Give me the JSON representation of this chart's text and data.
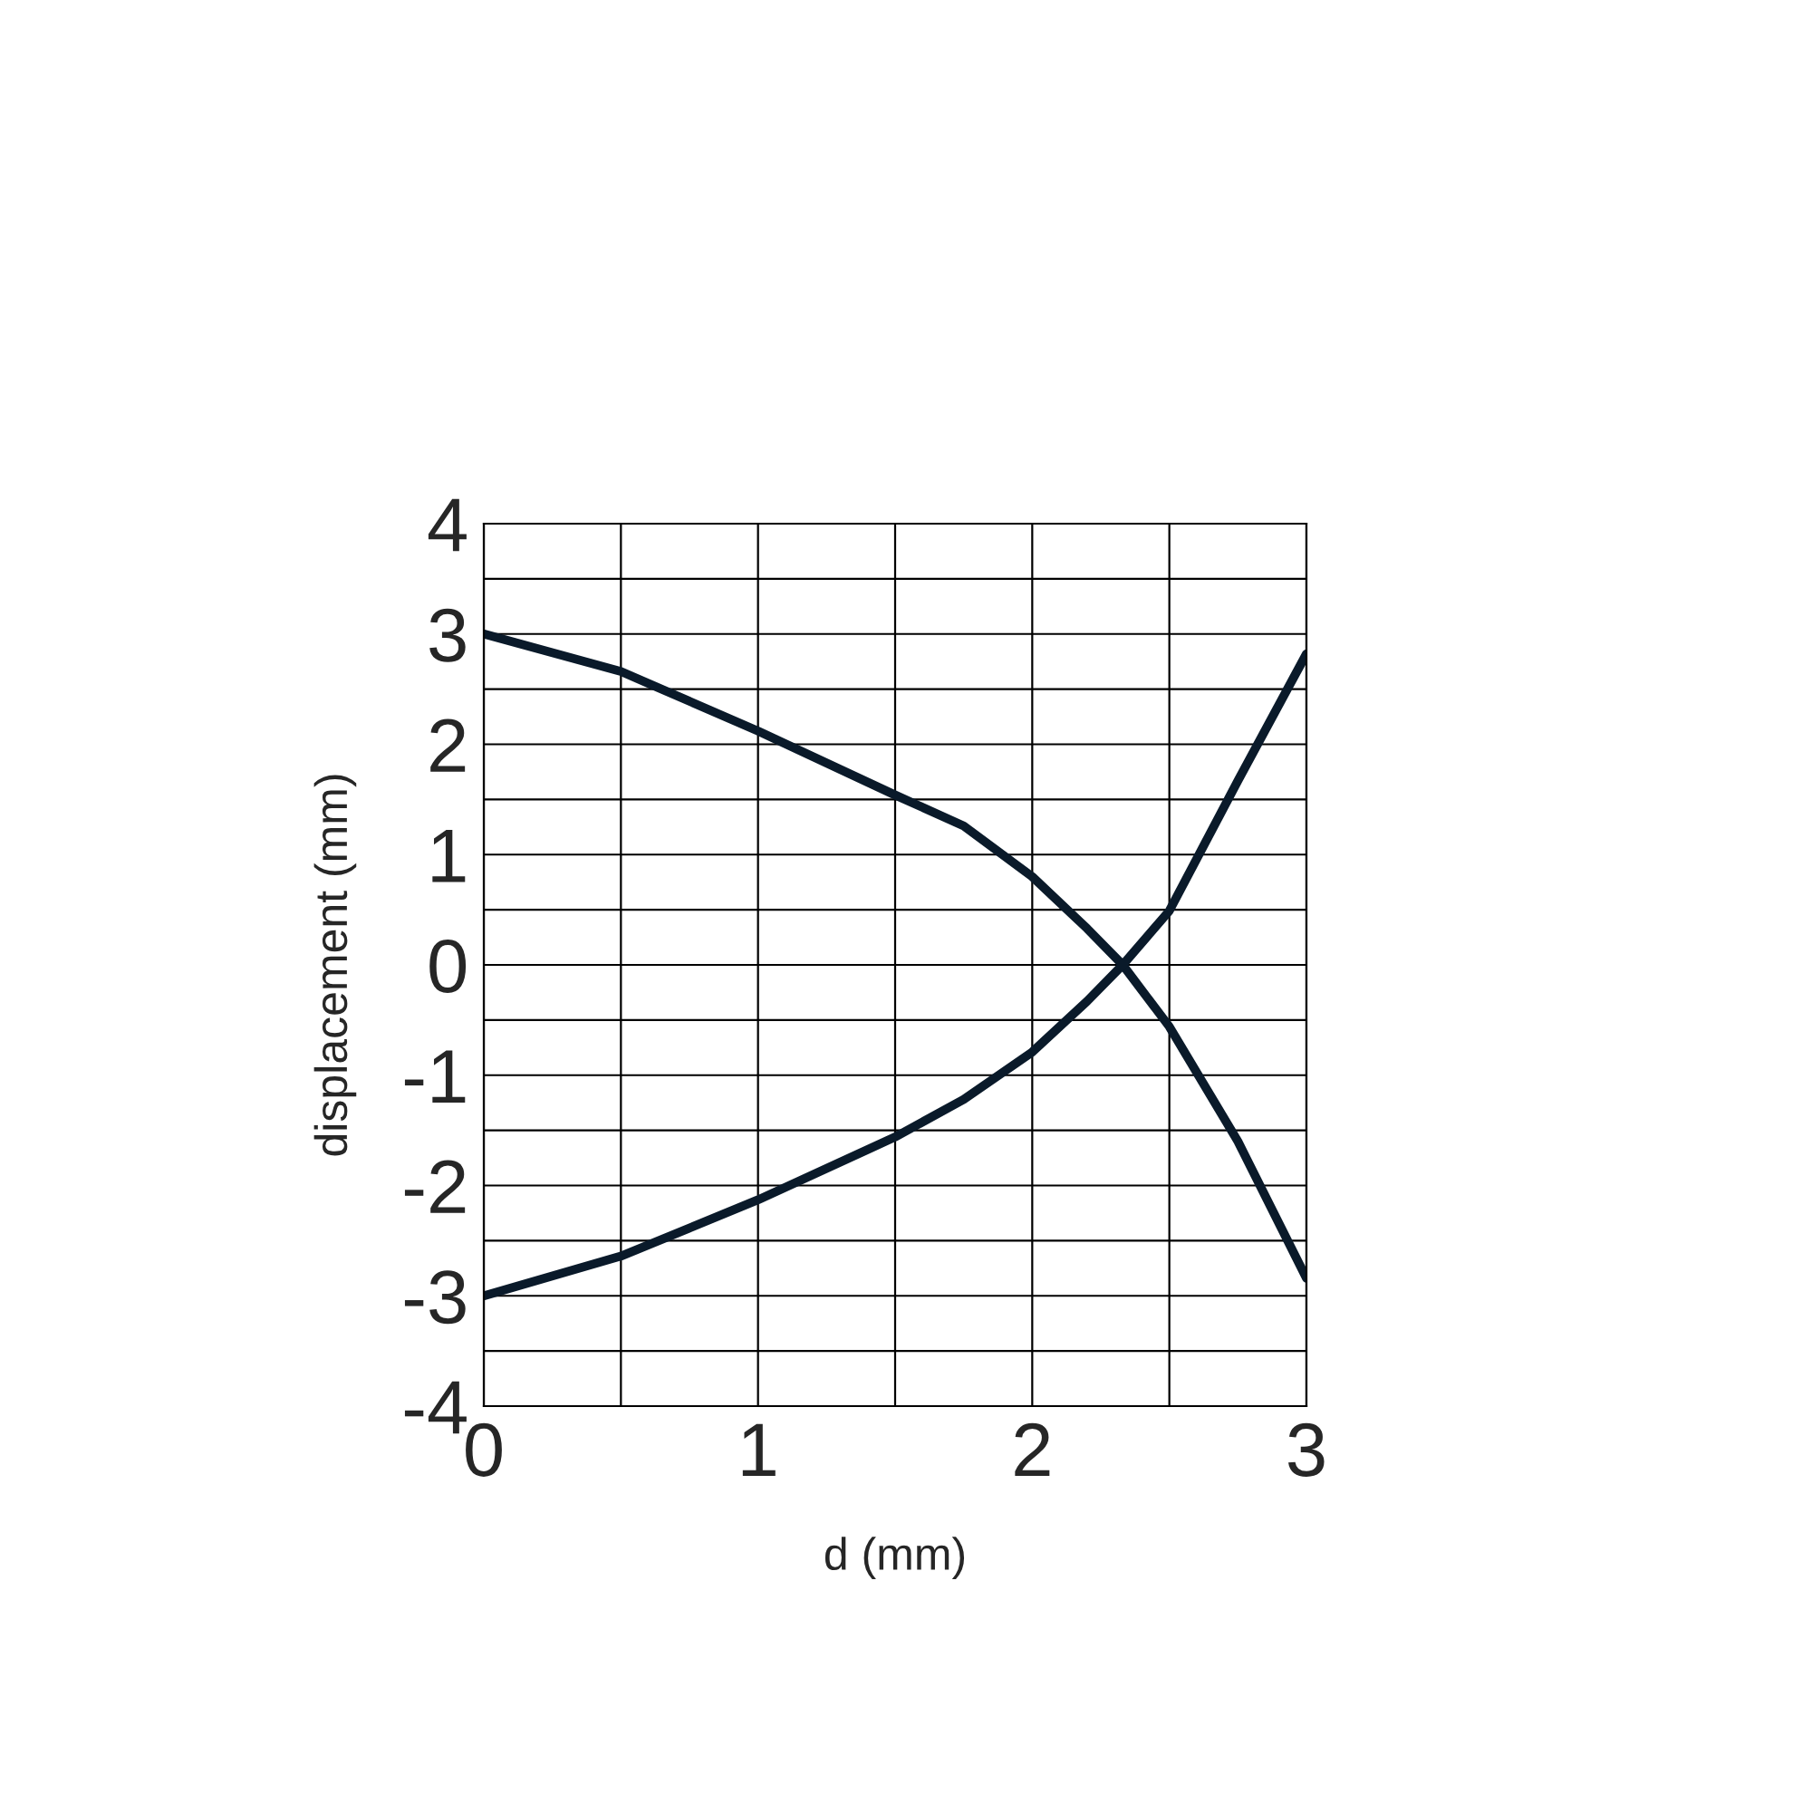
{
  "chart_data": {
    "type": "line",
    "xlabel": "d (mm)",
    "ylabel": "displacement (mm)",
    "xlim": [
      0,
      3
    ],
    "ylim": [
      -4,
      4
    ],
    "xticks": [
      0,
      {
        "value": 0.5,
        "label": null
      },
      1,
      {
        "value": 1.5,
        "label": null
      },
      2,
      {
        "value": 2.5,
        "label": null
      },
      3
    ],
    "yticks": [
      -4,
      {
        "value": -3.5,
        "label": null
      },
      -3,
      {
        "value": -2.5,
        "label": null
      },
      -2,
      {
        "value": -1.5,
        "label": null
      },
      -1,
      {
        "value": -0.5,
        "label": null
      },
      0,
      {
        "value": 0.5,
        "label": null
      },
      1,
      {
        "value": 1.5,
        "label": null
      },
      2,
      {
        "value": 2.5,
        "label": null
      },
      3,
      {
        "value": 3.5,
        "label": null
      },
      4
    ],
    "grid": true,
    "legend": false,
    "marker": "none",
    "line_style": "solid",
    "series": [
      {
        "color": "#0a1a2a",
        "x": [
          0,
          0.5,
          1,
          1.5,
          1.75,
          2,
          2.2,
          2.33,
          2.5,
          2.75,
          3
        ],
        "values": [
          3,
          2.66,
          2.12,
          1.54,
          1.26,
          0.8,
          0.33,
          0,
          -0.56,
          -1.6,
          -2.84
        ]
      },
      {
        "color": "#0a1a2a",
        "x": [
          0,
          0.5,
          1,
          1.5,
          1.75,
          2,
          2.2,
          2.33,
          2.5,
          2.75,
          3
        ],
        "values": [
          -3,
          -2.64,
          -2.13,
          -1.56,
          -1.22,
          -0.79,
          -0.33,
          0,
          0.49,
          1.67,
          2.82
        ]
      }
    ]
  }
}
